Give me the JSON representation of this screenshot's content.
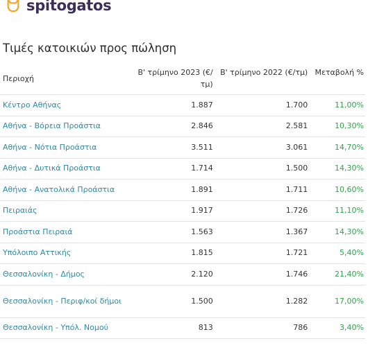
{
  "brand": {
    "name": "spitogatos",
    "icon": "cat-icon",
    "color": "#f5a623"
  },
  "table": {
    "title": "Τιμές κατοικιών προς πώληση",
    "headers": {
      "region": "Περιοχή",
      "q2_2023": "Β' τρίμηνο 2023 (€/τμ)",
      "q2_2022": "Β' τρίμηνο 2022 (€/τμ)",
      "change": "Μεταβολή %"
    },
    "rows": [
      {
        "region": "Κέντρο Αθήνας",
        "q2_2023": "1.887",
        "q2_2022": "1.700",
        "change": "11,00%"
      },
      {
        "region": "Αθήνα - Βόρεια Προάστια",
        "q2_2023": "2.846",
        "q2_2022": "2.581",
        "change": "10,30%"
      },
      {
        "region": "Αθήνα - Νότια Προάστια",
        "q2_2023": "3.511",
        "q2_2022": "3.061",
        "change": "14,70%"
      },
      {
        "region": "Αθήνα - Δυτικά Προάστια",
        "q2_2023": "1.714",
        "q2_2022": "1.500",
        "change": "14,30%"
      },
      {
        "region": "Αθήνα - Ανατολικά Προάστια",
        "q2_2023": "1.891",
        "q2_2022": "1.711",
        "change": "10,60%"
      },
      {
        "region": "Πειραιάς",
        "q2_2023": "1.917",
        "q2_2022": "1.726",
        "change": "11,10%"
      },
      {
        "region": "Προάστια Πειραιά",
        "q2_2023": "1.563",
        "q2_2022": "1.367",
        "change": "14,30%"
      },
      {
        "region": "Υπόλοιπο Αττικής",
        "q2_2023": "1.815",
        "q2_2022": "1.721",
        "change": "5,40%"
      },
      {
        "region": "Θεσσαλονίκη - Δήμος",
        "q2_2023": "2.120",
        "q2_2022": "1.746",
        "change": "21,40%"
      },
      {
        "region": "Θεσσαλονίκη - Περιφ/κοί δήμοι",
        "q2_2023": "1.500",
        "q2_2022": "1.282",
        "change": "17,00%"
      },
      {
        "region": "Θεσσαλονίκη - Υπόλ. Νομού",
        "q2_2023": "813",
        "q2_2022": "786",
        "change": "3,40%"
      }
    ]
  }
}
